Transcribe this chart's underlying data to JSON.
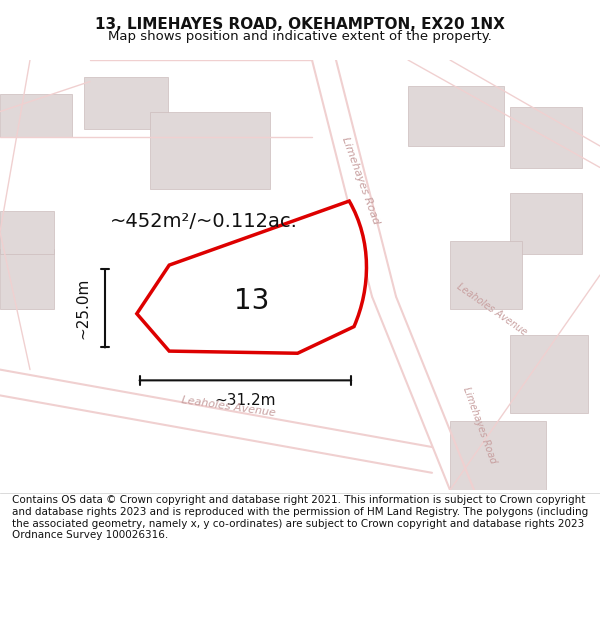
{
  "title": "13, LIMEHAYES ROAD, OKEHAMPTON, EX20 1NX",
  "subtitle": "Map shows position and indicative extent of the property.",
  "footer": "Contains OS data © Crown copyright and database right 2021. This information is subject to Crown copyright and database rights 2023 and is reproduced with the permission of HM Land Registry. The polygons (including the associated geometry, namely x, y co-ordinates) are subject to Crown copyright and database rights 2023 Ordnance Survey 100026316.",
  "area_label": "~452m²/~0.112ac.",
  "property_number": "13",
  "dim_height": "~25.0m",
  "dim_width": "~31.2m",
  "road1_label": "Limehayes Road",
  "road2_label": "Leaholes Avenue",
  "road3_label": "Leaholes Avenue",
  "road4_label": "Limehayes Road",
  "bg_color": "#ffffff",
  "map_bg": "#f5f0f0",
  "road_color": "#f0d0d0",
  "building_color": "#e0d8d8",
  "property_fill": "#ffffff",
  "property_edge": "#dd0000",
  "dim_color": "#111111",
  "road_text_color": "#c8a0a0",
  "title_fontsize": 11,
  "subtitle_fontsize": 9.5,
  "footer_fontsize": 7.5,
  "area_fontsize": 14,
  "number_fontsize": 20,
  "dim_fontsize": 11,
  "road_fontsize": 11
}
